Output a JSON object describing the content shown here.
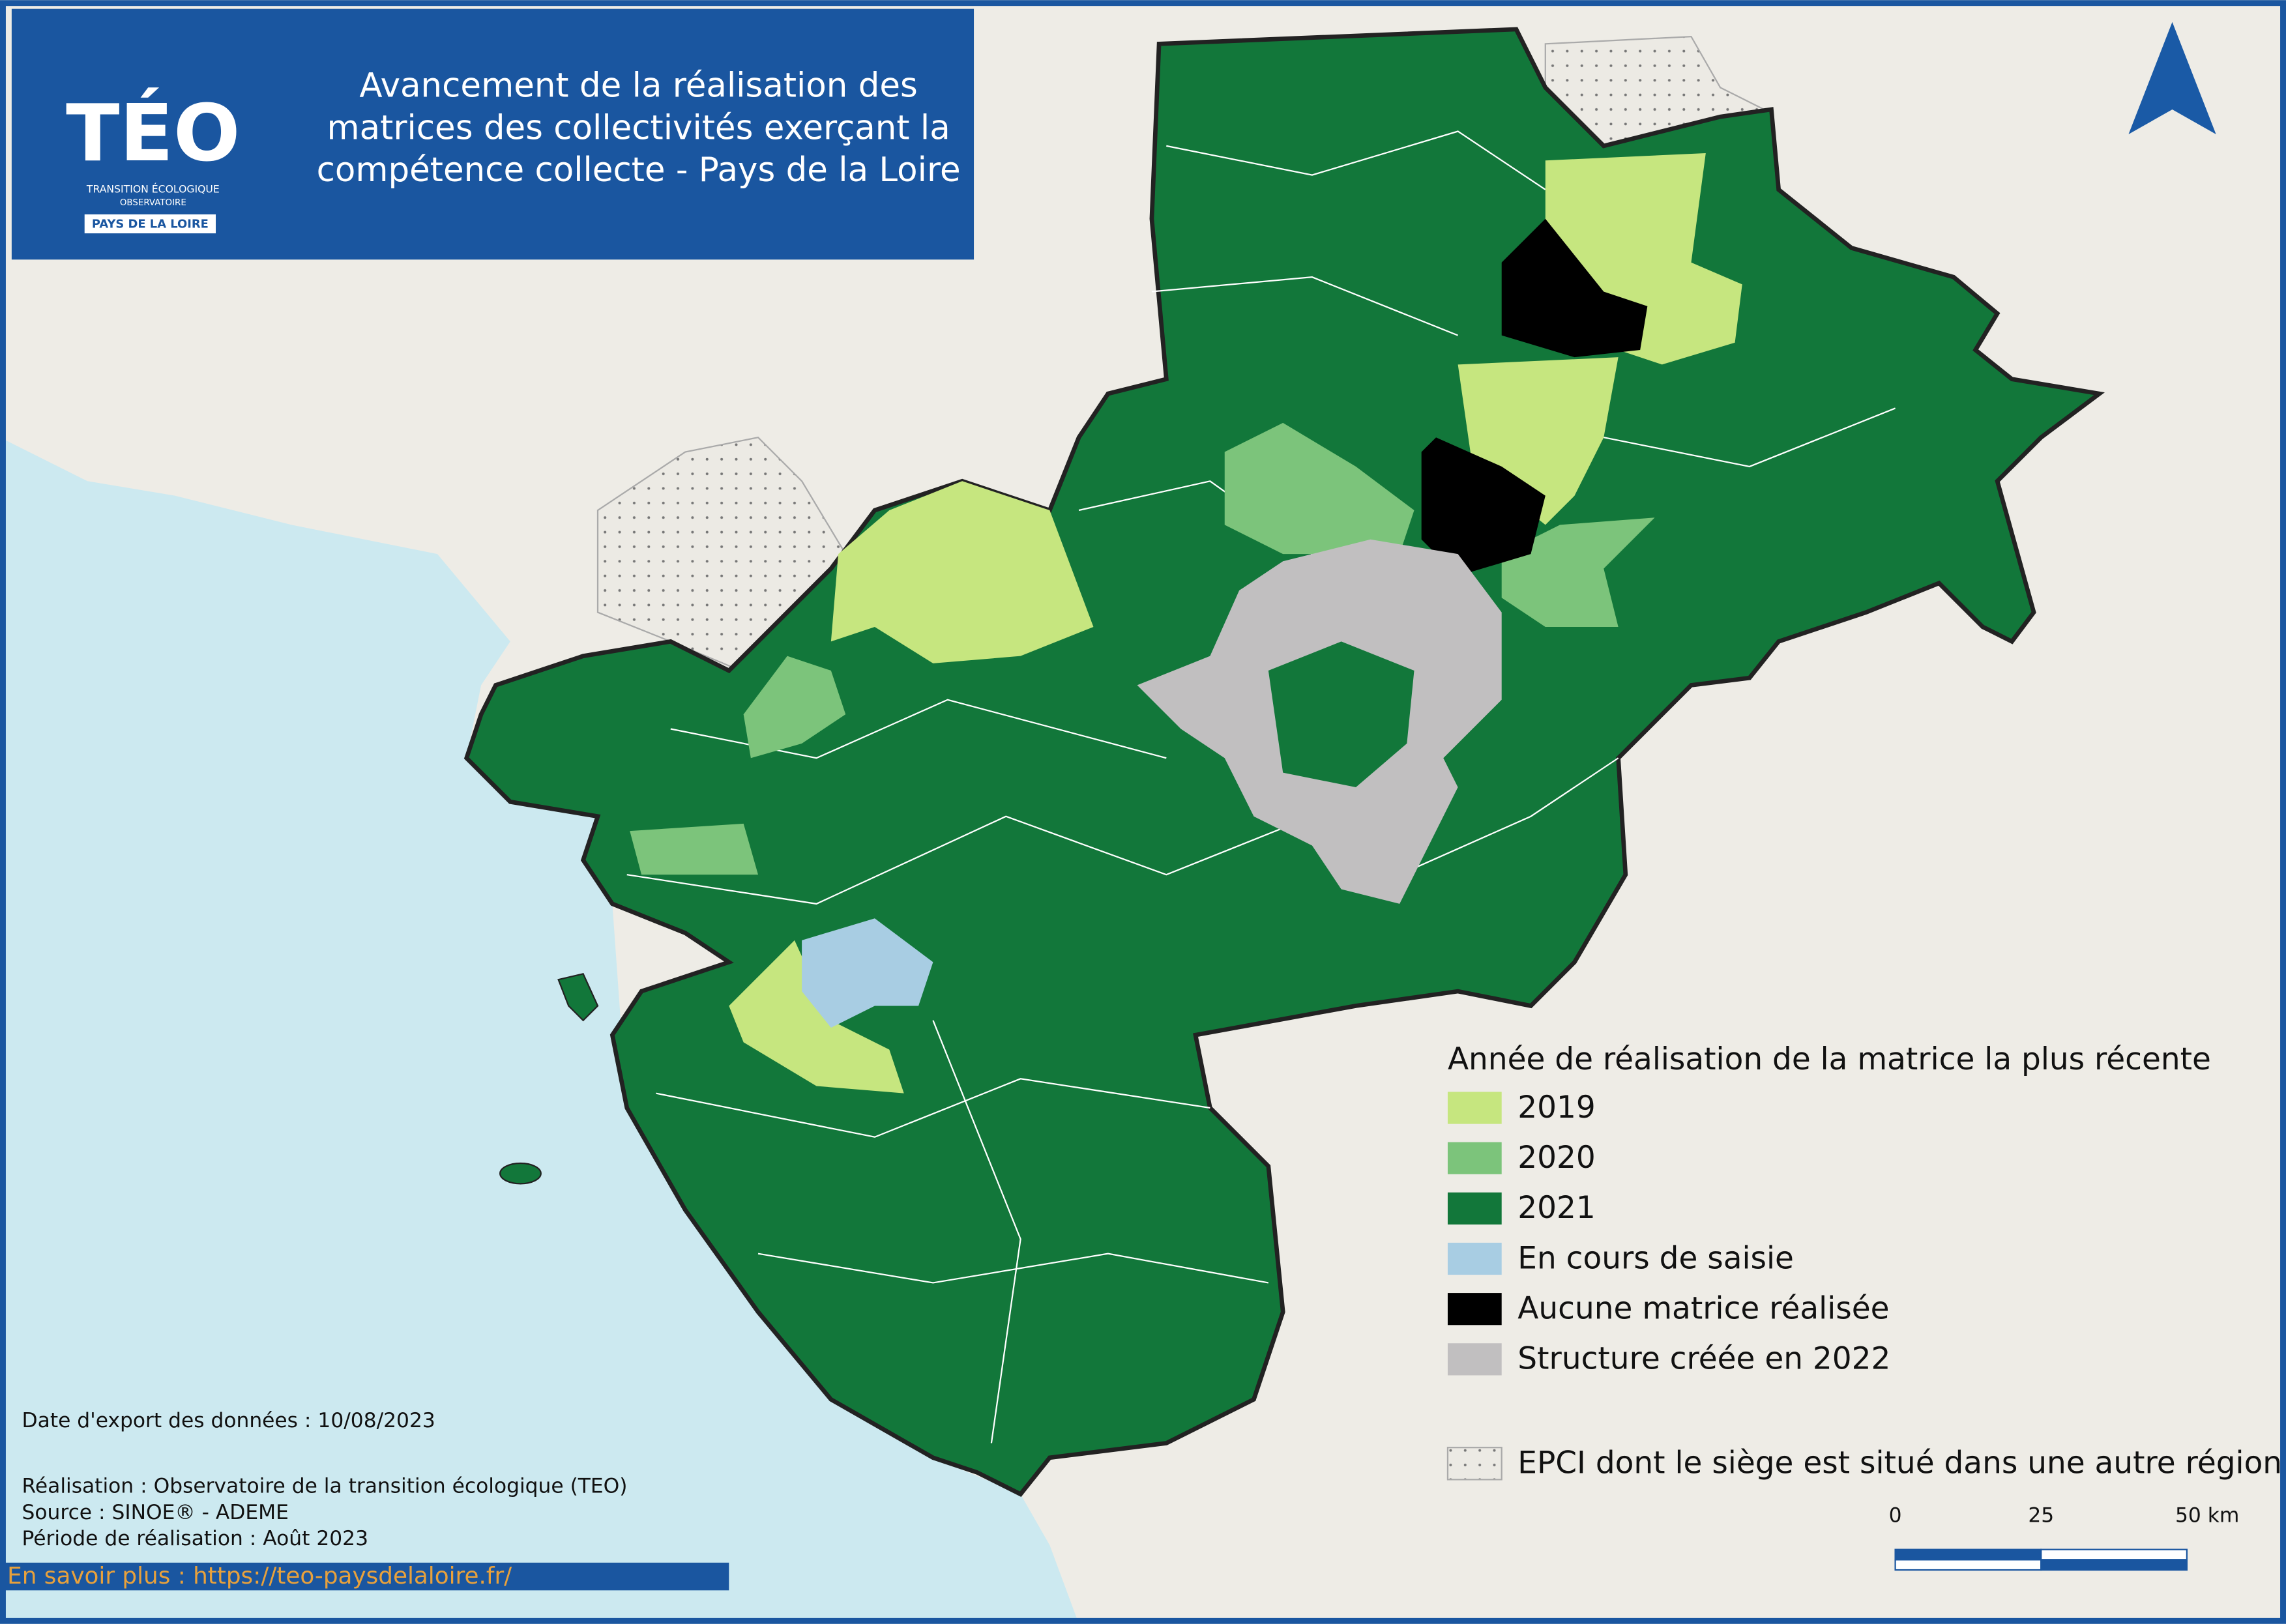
{
  "header": {
    "logo": "TÉO",
    "logo_sub": [
      "TRANSITION ÉCOLOGIQUE",
      "OBSERVATOIRE"
    ],
    "logo_region": "PAYS DE LA LOIRE",
    "title": [
      "Avancement de la réalisation des",
      "matrices des collectivités exerçant la",
      "compétence collecte - Pays de la Loire"
    ]
  },
  "legend": {
    "title": "Année de réalisation de la matrice la plus récente",
    "items": [
      {
        "label": "2019",
        "color": "#c6e67f"
      },
      {
        "label": "2020",
        "color": "#7cc47b"
      },
      {
        "label": "2021",
        "color": "#12773a"
      },
      {
        "label": "En cours de saisie",
        "color": "#a8cde3"
      },
      {
        "label": "Aucune matrice réalisée",
        "color": "#000000"
      },
      {
        "label": "Structure créée en 2022",
        "color": "#c1bfc0"
      }
    ],
    "other": "EPCI dont le siège est situé dans une autre région"
  },
  "notes": {
    "export": "Date d'export des données : 10/08/2023",
    "credits": [
      "Réalisation : Observatoire de la transition écologique (TEO)",
      "Source : SINOE® - ADEME",
      "Période de réalisation : Août 2023"
    ],
    "link": "En savoir plus : https://teo-paysdelaloire.fr/"
  },
  "scale": {
    "labels": [
      "0",
      "25",
      "50 km"
    ]
  }
}
